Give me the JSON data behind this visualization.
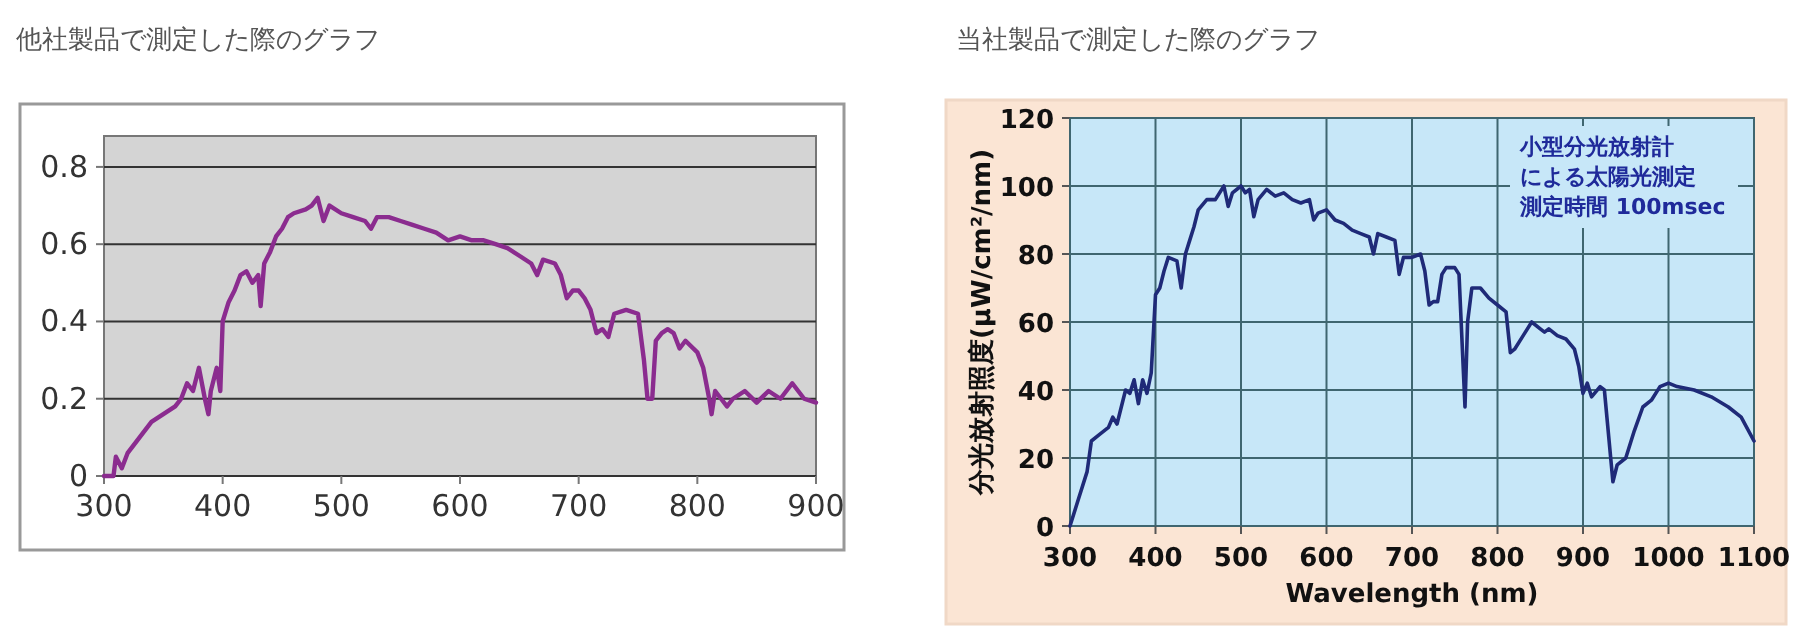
{
  "chart_data": [
    {
      "type": "line",
      "title": "他社製品で測定した際のグラフ",
      "xlim": [
        300,
        900
      ],
      "ylim": [
        0,
        0.88
      ],
      "xticks": [
        300,
        400,
        500,
        600,
        700,
        800,
        900
      ],
      "yticks": [
        0,
        0.2,
        0.4,
        0.6,
        0.8
      ],
      "grid": "y",
      "series": [
        {
          "color": "#8b2c8f",
          "x": [
            300,
            308,
            310,
            315,
            320,
            330,
            340,
            350,
            360,
            365,
            370,
            375,
            380,
            385,
            388,
            390,
            395,
            398,
            400,
            405,
            410,
            415,
            420,
            425,
            430,
            432,
            435,
            440,
            445,
            450,
            455,
            460,
            470,
            475,
            480,
            485,
            490,
            500,
            510,
            520,
            525,
            530,
            540,
            550,
            560,
            570,
            580,
            590,
            600,
            610,
            620,
            630,
            640,
            650,
            660,
            665,
            670,
            680,
            685,
            690,
            695,
            700,
            705,
            710,
            715,
            720,
            725,
            730,
            740,
            750,
            755,
            758,
            762,
            765,
            770,
            775,
            780,
            785,
            790,
            800,
            805,
            810,
            812,
            815,
            820,
            825,
            830,
            840,
            850,
            860,
            870,
            880,
            890,
            900
          ],
          "values": [
            0,
            0,
            0.05,
            0.02,
            0.06,
            0.1,
            0.14,
            0.16,
            0.18,
            0.2,
            0.24,
            0.22,
            0.28,
            0.2,
            0.16,
            0.22,
            0.28,
            0.22,
            0.4,
            0.45,
            0.48,
            0.52,
            0.53,
            0.5,
            0.52,
            0.44,
            0.55,
            0.58,
            0.62,
            0.64,
            0.67,
            0.68,
            0.69,
            0.7,
            0.72,
            0.66,
            0.7,
            0.68,
            0.67,
            0.66,
            0.64,
            0.67,
            0.67,
            0.66,
            0.65,
            0.64,
            0.63,
            0.61,
            0.62,
            0.61,
            0.61,
            0.6,
            0.59,
            0.57,
            0.55,
            0.52,
            0.56,
            0.55,
            0.52,
            0.46,
            0.48,
            0.48,
            0.46,
            0.43,
            0.37,
            0.38,
            0.36,
            0.42,
            0.43,
            0.42,
            0.3,
            0.2,
            0.2,
            0.35,
            0.37,
            0.38,
            0.37,
            0.33,
            0.35,
            0.32,
            0.28,
            0.2,
            0.16,
            0.22,
            0.2,
            0.18,
            0.2,
            0.22,
            0.19,
            0.22,
            0.2,
            0.24,
            0.2,
            0.19
          ]
        }
      ]
    },
    {
      "type": "line",
      "title": "当社製品で測定した際のグラフ",
      "xlabel": "Wavelength (nm)",
      "ylabel": "分光放射照度(μW/cm²/nm)",
      "xlim": [
        300,
        1100
      ],
      "ylim": [
        0,
        120
      ],
      "xticks": [
        300,
        400,
        500,
        600,
        700,
        800,
        900,
        1000,
        1100
      ],
      "yticks": [
        0,
        20,
        40,
        60,
        80,
        100,
        120
      ],
      "grid": true,
      "annotations": [
        "小型分光放射計",
        "による太陽光測定",
        "測定時間  100msec"
      ],
      "series": [
        {
          "color": "#1f2a78",
          "x": [
            300,
            310,
            320,
            325,
            335,
            345,
            350,
            355,
            360,
            365,
            370,
            375,
            380,
            385,
            390,
            395,
            400,
            405,
            410,
            415,
            425,
            430,
            435,
            440,
            445,
            450,
            460,
            470,
            480,
            485,
            490,
            500,
            505,
            510,
            515,
            520,
            530,
            540,
            550,
            560,
            570,
            580,
            585,
            590,
            600,
            610,
            620,
            630,
            640,
            650,
            655,
            660,
            670,
            680,
            685,
            690,
            700,
            710,
            715,
            720,
            725,
            730,
            735,
            740,
            750,
            755,
            760,
            762,
            765,
            770,
            780,
            790,
            800,
            810,
            815,
            820,
            830,
            840,
            850,
            855,
            860,
            870,
            880,
            890,
            895,
            900,
            905,
            910,
            920,
            925,
            935,
            940,
            950,
            960,
            970,
            980,
            990,
            1000,
            1010,
            1030,
            1050,
            1070,
            1085,
            1100
          ],
          "values": [
            0,
            8,
            16,
            25,
            27,
            29,
            32,
            30,
            35,
            40,
            39,
            43,
            36,
            43,
            39,
            45,
            68,
            70,
            75,
            79,
            78,
            70,
            80,
            84,
            88,
            93,
            96,
            96,
            100,
            94,
            98,
            100,
            98,
            99,
            91,
            96,
            99,
            97,
            98,
            96,
            95,
            96,
            90,
            92,
            93,
            90,
            89,
            87,
            86,
            85,
            80,
            86,
            85,
            84,
            74,
            79,
            79,
            80,
            75,
            65,
            66,
            66,
            74,
            76,
            76,
            74,
            46,
            35,
            60,
            70,
            70,
            67,
            65,
            63,
            51,
            52,
            56,
            60,
            58,
            57,
            58,
            56,
            55,
            52,
            47,
            39,
            42,
            38,
            41,
            40,
            13,
            18,
            20,
            28,
            35,
            37,
            41,
            42,
            41,
            40,
            38,
            35,
            32,
            25
          ]
        }
      ]
    }
  ]
}
